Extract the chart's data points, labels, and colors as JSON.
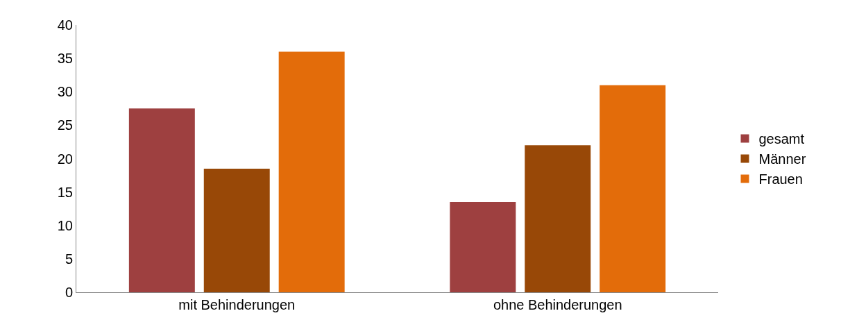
{
  "chart_data": {
    "type": "bar",
    "categories": [
      "mit Behinderungen",
      "ohne Behinderungen"
    ],
    "series": [
      {
        "name": "gesamt",
        "color": "#9e4040",
        "values": [
          27.5,
          13.5
        ]
      },
      {
        "name": "Männer",
        "color": "#984807",
        "values": [
          18.5,
          22
        ]
      },
      {
        "name": "Frauen",
        "color": "#e36c0a",
        "values": [
          36,
          31
        ]
      }
    ],
    "ylim": [
      0,
      40
    ],
    "yticks": [
      0,
      5,
      10,
      15,
      20,
      25,
      30,
      35,
      40
    ],
    "grid": false,
    "legend": "right"
  }
}
